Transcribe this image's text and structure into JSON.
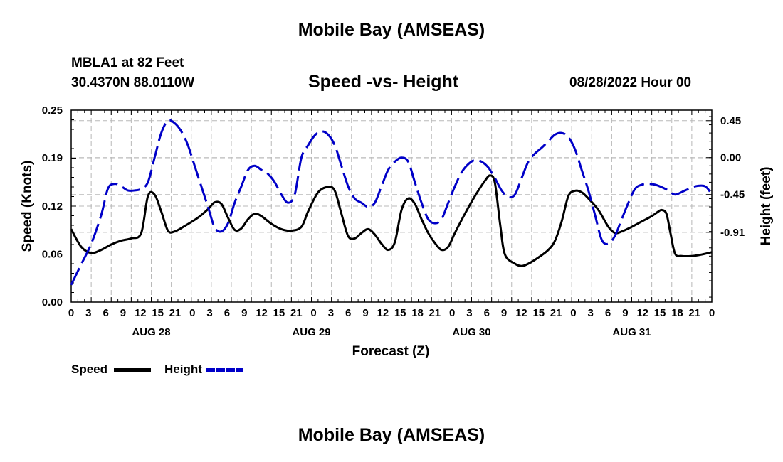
{
  "chart_data": {
    "type": "line",
    "title": "Mobile Bay (AMSEAS)",
    "footer_title": "Mobile Bay (AMSEAS)",
    "subtitle": "Speed -vs- Height",
    "station": "MBLA1 at 82 Feet",
    "location": "30.4370N  88.0110W",
    "run": "08/28/2022 Hour 00",
    "xlabel": "Forecast (Z)",
    "ylabel_left": "Speed (Knots)",
    "ylabel_right": "Height (feet)",
    "xlim": [
      0,
      96
    ],
    "ylim_left": [
      0,
      0.25
    ],
    "ylim_right": [
      -1.76,
      0.578
    ],
    "x_tick_labels": [
      "0",
      "3",
      "6",
      "9",
      "12",
      "15",
      "21",
      "0",
      "3",
      "6",
      "9",
      "12",
      "15",
      "21",
      "0",
      "3",
      "6",
      "9",
      "12",
      "15",
      "18",
      "21",
      "0",
      "3",
      "6",
      "9",
      "12",
      "15",
      "21",
      "0",
      "3",
      "6",
      "9",
      "12",
      "15",
      "18",
      "21",
      "0"
    ],
    "day_labels": [
      {
        "label": "AUG 28",
        "x": 12
      },
      {
        "label": "AUG 29",
        "x": 36
      },
      {
        "label": "AUG 30",
        "x": 60
      },
      {
        "label": "AUG 31",
        "x": 84
      }
    ],
    "left_ticks": [
      {
        "label": "0.25",
        "value": 0.25
      },
      {
        "label": "0.19",
        "value": 0.188
      },
      {
        "label": "0.12",
        "value": 0.125
      },
      {
        "label": "0.06",
        "value": 0.0625
      },
      {
        "label": "0.00",
        "value": 0.0
      }
    ],
    "right_ticks": [
      {
        "label": "0.45",
        "value": 0.45
      },
      {
        "label": "0.00",
        "value": 0.0
      },
      {
        "label": "-0.45",
        "value": -0.45
      },
      {
        "label": "-0.91",
        "value": -0.91
      }
    ],
    "series": [
      {
        "name": "Speed",
        "axis": "left",
        "color": "#000000",
        "dash": "solid",
        "points": [
          [
            0,
            0.095
          ],
          [
            1.5,
            0.072
          ],
          [
            3,
            0.064
          ],
          [
            4.5,
            0.068
          ],
          [
            6,
            0.075
          ],
          [
            7.5,
            0.08
          ],
          [
            9,
            0.083
          ],
          [
            10.5,
            0.09
          ],
          [
            11.5,
            0.138
          ],
          [
            12.5,
            0.14
          ],
          [
            13.5,
            0.118
          ],
          [
            14.5,
            0.093
          ],
          [
            15.5,
            0.092
          ],
          [
            17,
            0.099
          ],
          [
            19,
            0.11
          ],
          [
            20.5,
            0.121
          ],
          [
            21.5,
            0.13
          ],
          [
            22.5,
            0.128
          ],
          [
            23.5,
            0.11
          ],
          [
            24.5,
            0.094
          ],
          [
            25.5,
            0.096
          ],
          [
            26.5,
            0.108
          ],
          [
            27.5,
            0.115
          ],
          [
            28.5,
            0.112
          ],
          [
            30,
            0.102
          ],
          [
            31.5,
            0.095
          ],
          [
            33,
            0.093
          ],
          [
            34.5,
            0.098
          ],
          [
            35.5,
            0.118
          ],
          [
            37,
            0.143
          ],
          [
            38.5,
            0.15
          ],
          [
            39.5,
            0.145
          ],
          [
            40.5,
            0.115
          ],
          [
            41.5,
            0.086
          ],
          [
            42.5,
            0.083
          ],
          [
            43.5,
            0.09
          ],
          [
            44.5,
            0.095
          ],
          [
            45.5,
            0.088
          ],
          [
            46.5,
            0.076
          ],
          [
            47.5,
            0.068
          ],
          [
            48.5,
            0.078
          ],
          [
            49.5,
            0.12
          ],
          [
            50.5,
            0.135
          ],
          [
            51.5,
            0.128
          ],
          [
            52.5,
            0.108
          ],
          [
            53.5,
            0.09
          ],
          [
            54.5,
            0.077
          ],
          [
            55.5,
            0.068
          ],
          [
            56.5,
            0.072
          ],
          [
            57.5,
            0.09
          ],
          [
            59,
            0.115
          ],
          [
            60.5,
            0.138
          ],
          [
            62,
            0.158
          ],
          [
            62.8,
            0.165
          ],
          [
            63.5,
            0.155
          ],
          [
            64.3,
            0.1
          ],
          [
            65,
            0.062
          ],
          [
            66.5,
            0.05
          ],
          [
            67.5,
            0.047
          ],
          [
            68.5,
            0.05
          ],
          [
            70,
            0.058
          ],
          [
            71.5,
            0.068
          ],
          [
            72.5,
            0.08
          ],
          [
            73.5,
            0.105
          ],
          [
            74.5,
            0.138
          ],
          [
            75.5,
            0.145
          ],
          [
            76.5,
            0.143
          ],
          [
            77.5,
            0.135
          ],
          [
            79,
            0.12
          ],
          [
            80.5,
            0.098
          ],
          [
            81.5,
            0.09
          ],
          [
            82.5,
            0.092
          ],
          [
            84,
            0.098
          ],
          [
            85.5,
            0.105
          ],
          [
            87,
            0.112
          ],
          [
            88,
            0.118
          ],
          [
            88.5,
            0.12
          ],
          [
            89.2,
            0.115
          ],
          [
            89.8,
            0.09
          ],
          [
            90.5,
            0.063
          ],
          [
            91.5,
            0.06
          ],
          [
            93,
            0.06
          ],
          [
            94.5,
            0.062
          ],
          [
            96,
            0.065
          ]
        ]
      },
      {
        "name": "Height",
        "axis": "right",
        "color": "#0000c8",
        "dash": "dashed",
        "points": [
          [
            0,
            -1.55
          ],
          [
            1.5,
            -1.3
          ],
          [
            3,
            -1.05
          ],
          [
            4.5,
            -0.7
          ],
          [
            5.5,
            -0.38
          ],
          [
            6.5,
            -0.32
          ],
          [
            7.5,
            -0.35
          ],
          [
            8.5,
            -0.4
          ],
          [
            9.5,
            -0.4
          ],
          [
            10.5,
            -0.38
          ],
          [
            11.5,
            -0.3
          ],
          [
            12.5,
            0.0
          ],
          [
            13.5,
            0.3
          ],
          [
            14.5,
            0.45
          ],
          [
            15.5,
            0.42
          ],
          [
            16.5,
            0.32
          ],
          [
            17.5,
            0.15
          ],
          [
            18.5,
            -0.1
          ],
          [
            19.5,
            -0.35
          ],
          [
            20.5,
            -0.6
          ],
          [
            21.5,
            -0.85
          ],
          [
            22.5,
            -0.9
          ],
          [
            23.5,
            -0.8
          ],
          [
            24.5,
            -0.55
          ],
          [
            25.5,
            -0.35
          ],
          [
            26.5,
            -0.15
          ],
          [
            27.5,
            -0.1
          ],
          [
            28.5,
            -0.15
          ],
          [
            29.5,
            -0.2
          ],
          [
            30.5,
            -0.3
          ],
          [
            31.5,
            -0.45
          ],
          [
            32.5,
            -0.55
          ],
          [
            33.5,
            -0.45
          ],
          [
            34.5,
            0.0
          ],
          [
            35.5,
            0.15
          ],
          [
            36.5,
            0.27
          ],
          [
            37.5,
            0.32
          ],
          [
            38.5,
            0.28
          ],
          [
            39.5,
            0.15
          ],
          [
            40.5,
            -0.1
          ],
          [
            41.5,
            -0.35
          ],
          [
            42.5,
            -0.5
          ],
          [
            43.5,
            -0.55
          ],
          [
            44.5,
            -0.6
          ],
          [
            45.5,
            -0.55
          ],
          [
            46.5,
            -0.35
          ],
          [
            47.5,
            -0.15
          ],
          [
            48.5,
            -0.05
          ],
          [
            49.5,
            0.0
          ],
          [
            50.5,
            -0.05
          ],
          [
            51.5,
            -0.3
          ],
          [
            52.5,
            -0.55
          ],
          [
            53.5,
            -0.75
          ],
          [
            54.5,
            -0.8
          ],
          [
            55.5,
            -0.75
          ],
          [
            56.5,
            -0.55
          ],
          [
            57.5,
            -0.35
          ],
          [
            58.5,
            -0.18
          ],
          [
            59.5,
            -0.08
          ],
          [
            60.5,
            -0.03
          ],
          [
            61.5,
            -0.05
          ],
          [
            62.5,
            -0.12
          ],
          [
            63.5,
            -0.25
          ],
          [
            64.5,
            -0.4
          ],
          [
            65.5,
            -0.48
          ],
          [
            66.5,
            -0.45
          ],
          [
            67.5,
            -0.25
          ],
          [
            68.5,
            -0.05
          ],
          [
            69.5,
            0.05
          ],
          [
            70.5,
            0.12
          ],
          [
            71.5,
            0.2
          ],
          [
            72.5,
            0.28
          ],
          [
            73.5,
            0.3
          ],
          [
            74.5,
            0.25
          ],
          [
            75.5,
            0.1
          ],
          [
            76.5,
            -0.15
          ],
          [
            77.5,
            -0.4
          ],
          [
            78.5,
            -0.7
          ],
          [
            79.5,
            -1.0
          ],
          [
            80.5,
            -1.05
          ],
          [
            81.5,
            -0.95
          ],
          [
            82.5,
            -0.75
          ],
          [
            83.5,
            -0.55
          ],
          [
            84.5,
            -0.38
          ],
          [
            85.5,
            -0.33
          ],
          [
            86.5,
            -0.32
          ],
          [
            87.5,
            -0.33
          ],
          [
            88.5,
            -0.36
          ],
          [
            89.5,
            -0.4
          ],
          [
            90.5,
            -0.45
          ],
          [
            92,
            -0.4
          ],
          [
            93.5,
            -0.35
          ],
          [
            95,
            -0.35
          ],
          [
            96,
            -0.45
          ]
        ]
      }
    ]
  },
  "legend": {
    "speed_label": "Speed",
    "height_label": "Height"
  }
}
